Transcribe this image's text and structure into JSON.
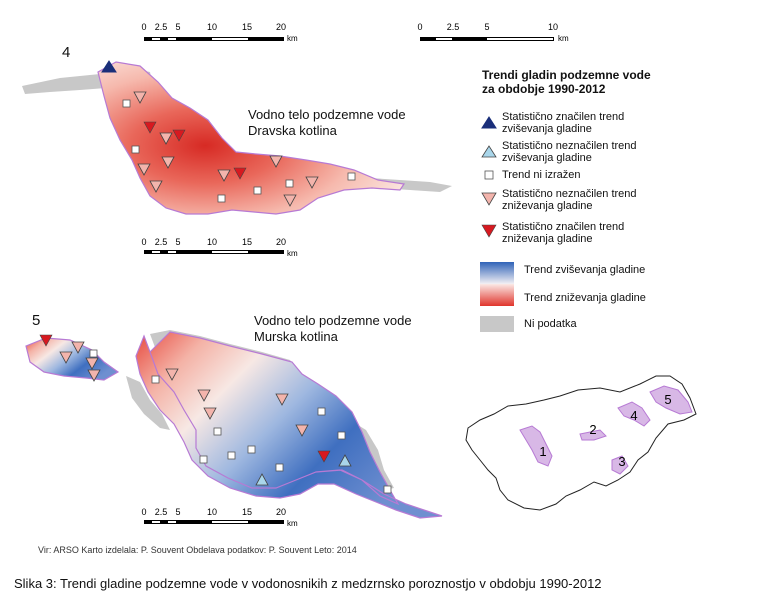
{
  "map_labels": {
    "region4_number": "4",
    "region5_number": "5",
    "dravska_line1": "Vodno telo podzemne vode",
    "dravska_line2": "Dravska kotlina",
    "murska_line1": "Vodno telo podzemne vode",
    "murska_line2": "Murska kotlina"
  },
  "scalebars": {
    "top_left": {
      "ticks": [
        "0",
        "2.5",
        "5",
        "10",
        "15",
        "20"
      ],
      "unit": "km"
    },
    "top_right": {
      "ticks": [
        "0",
        "2.5",
        "5",
        "10"
      ],
      "unit": "km"
    },
    "middle": {
      "ticks": [
        "0",
        "2.5",
        "5",
        "10",
        "15",
        "20"
      ],
      "unit": "km"
    },
    "bottom": {
      "ticks": [
        "0",
        "2.5",
        "5",
        "10",
        "15",
        "20"
      ],
      "unit": "km"
    }
  },
  "legend": {
    "title_line1": "Trendi gladin podzemne vode",
    "title_line2": "za obdobje 1990-2012",
    "items": [
      {
        "symbol": "triangle-up-dark-blue",
        "line1": "Statistično značilen trend",
        "line2": "zviševanja gladine",
        "color": "#1a2f7a"
      },
      {
        "symbol": "triangle-up-light-blue",
        "line1": "Statistično neznačilen trend",
        "line2": "zviševanja gladine",
        "color": "#a9d6ea"
      },
      {
        "symbol": "square-white",
        "line1": "Trend ni izražen",
        "line2": "",
        "color": "#ffffff"
      },
      {
        "symbol": "triangle-down-light-red",
        "line1": "Statistično neznačilen trend",
        "line2": "zniževanja gladine",
        "color": "#f3b4ac"
      },
      {
        "symbol": "triangle-down-red",
        "line1": "Statistično značilen trend",
        "line2": "zniževanja gladine",
        "color": "#d71920"
      }
    ],
    "ramp_rising": "Trend zviševanja gladine",
    "ramp_falling": "Trend zniževanja gladine",
    "no_data": "Ni podatka",
    "colors": {
      "rising": "#2f63b8",
      "falling": "#e0352c",
      "no_data": "#c8c8c8",
      "outline": "#b77ad4"
    }
  },
  "inset": {
    "labels": [
      "1",
      "2",
      "3",
      "4",
      "5"
    ]
  },
  "source_text": "Vir: ARSO  Karto izdelala: P. Souvent  Obdelava podatkov: P. Souvent  Leto: 2014",
  "caption": "Slika 3: Trendi gladine podzemne vode v vodonosnikih z medzrnsko poroznostjo v obdobju 1990-2012"
}
